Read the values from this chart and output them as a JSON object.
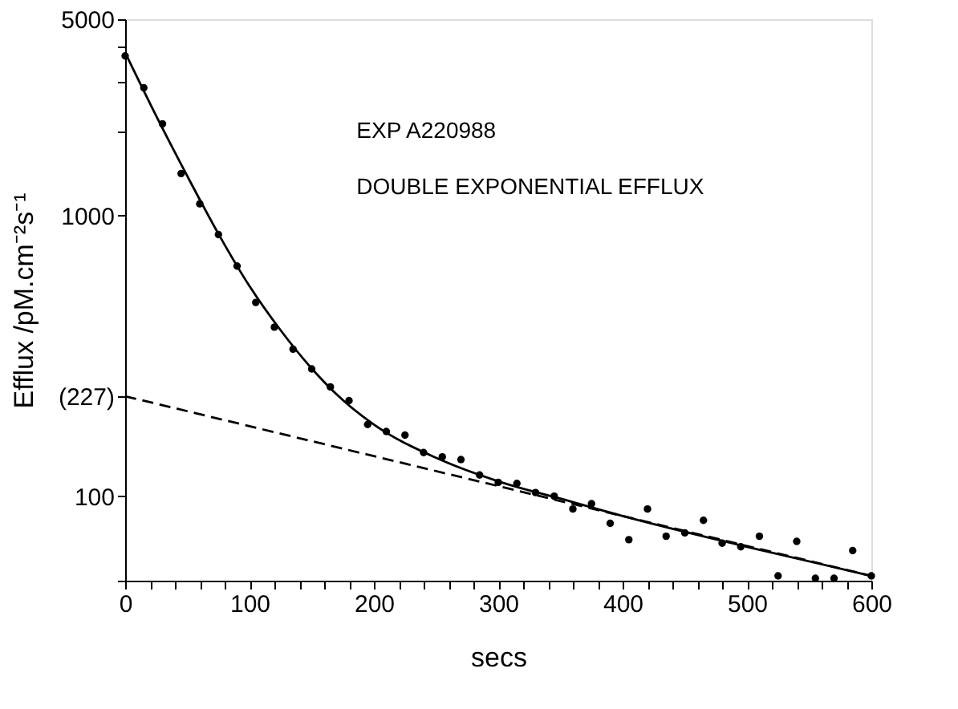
{
  "chart_data": {
    "type": "scatter",
    "xlabel": "secs",
    "ylabel": "Efflux  /pM.cm⁻²s⁻¹",
    "annotations": [
      "EXP A220988",
      "DOUBLE EXPONENTIAL EFFLUX"
    ],
    "log": "y",
    "grid": false,
    "xlim": [
      0,
      600
    ],
    "ylim": [
      50,
      5000
    ],
    "xticks": [
      0,
      {
        "value": 20,
        "label": null
      },
      {
        "value": 40,
        "label": null
      },
      {
        "value": 60,
        "label": null
      },
      {
        "value": 80,
        "label": null
      },
      100,
      {
        "value": 120,
        "label": null
      },
      {
        "value": 140,
        "label": null
      },
      {
        "value": 160,
        "label": null
      },
      {
        "value": 180,
        "label": null
      },
      200,
      {
        "value": 220,
        "label": null
      },
      {
        "value": 240,
        "label": null
      },
      {
        "value": 260,
        "label": null
      },
      {
        "value": 280,
        "label": null
      },
      300,
      {
        "value": 320,
        "label": null
      },
      {
        "value": 340,
        "label": null
      },
      {
        "value": 360,
        "label": null
      },
      {
        "value": 380,
        "label": null
      },
      400,
      {
        "value": 420,
        "label": null
      },
      {
        "value": 440,
        "label": null
      },
      {
        "value": 460,
        "label": null
      },
      {
        "value": 480,
        "label": null
      },
      500,
      {
        "value": 520,
        "label": null
      },
      {
        "value": 540,
        "label": null
      },
      {
        "value": 560,
        "label": null
      },
      {
        "value": 580,
        "label": null
      },
      600
    ],
    "yticks": [
      {
        "value": 50,
        "label": null
      },
      100,
      {
        "value": 227,
        "label": "(227)"
      },
      1000,
      {
        "value": 2000,
        "label": null
      },
      {
        "value": 3000,
        "label": null
      },
      {
        "value": 4000,
        "label": null
      },
      5000
    ],
    "series": [
      {
        "marker": "circle",
        "color": "#000000",
        "x": [
          0,
          15,
          30,
          45,
          60,
          75,
          90,
          105,
          120,
          135,
          150,
          165,
          180,
          195,
          210,
          225,
          240,
          255,
          270,
          285,
          300,
          315,
          330,
          345,
          360,
          375,
          390,
          405,
          420,
          435,
          450,
          465,
          480,
          495,
          510,
          525,
          540,
          555,
          570,
          585,
          600
        ],
        "values": [
          3700,
          2850,
          2120,
          1410,
          1100,
          855,
          660,
          490,
          400,
          334,
          284,
          245,
          219,
          180,
          170,
          165,
          143,
          138,
          135,
          119,
          112,
          111,
          103,
          100,
          90,
          94,
          80,
          70,
          90,
          72,
          74,
          82,
          68,
          66,
          72,
          52,
          69,
          51,
          51,
          64,
          52
        ]
      },
      {
        "type": "line",
        "line_style": "solid",
        "color": "#000000",
        "x": [
          0,
          25,
          50,
          75,
          100,
          125,
          150,
          175,
          200,
          250,
          300,
          350,
          400,
          500,
          600
        ],
        "values": [
          3800,
          2260,
          1380,
          860,
          560,
          390,
          285,
          220,
          180,
          137,
          113,
          98,
          85,
          66,
          52
        ]
      },
      {
        "type": "line",
        "line_style": "dashed",
        "color": "#000000",
        "x": [
          0,
          600
        ],
        "values": [
          227,
          52
        ]
      }
    ]
  }
}
